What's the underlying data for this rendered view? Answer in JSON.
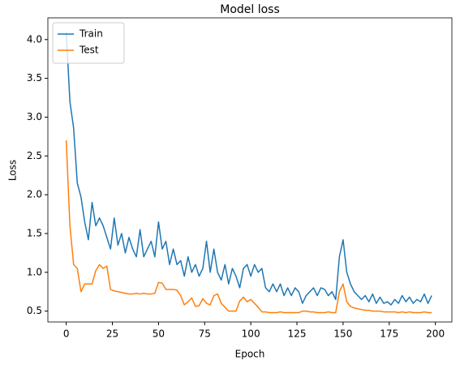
{
  "chart_data": {
    "type": "line",
    "title": "Model loss",
    "xlabel": "Epoch",
    "ylabel": "Loss",
    "x": [
      0,
      2,
      4,
      6,
      8,
      10,
      12,
      14,
      16,
      18,
      20,
      22,
      24,
      26,
      28,
      30,
      32,
      34,
      36,
      38,
      40,
      42,
      44,
      46,
      48,
      50,
      52,
      54,
      56,
      58,
      60,
      62,
      64,
      66,
      68,
      70,
      72,
      74,
      76,
      78,
      80,
      82,
      84,
      86,
      88,
      90,
      92,
      94,
      96,
      98,
      100,
      102,
      104,
      106,
      108,
      110,
      112,
      114,
      116,
      118,
      120,
      122,
      124,
      126,
      128,
      130,
      132,
      134,
      136,
      138,
      140,
      142,
      144,
      146,
      148,
      150,
      152,
      154,
      156,
      158,
      160,
      162,
      164,
      166,
      168,
      170,
      172,
      174,
      176,
      178,
      180,
      182,
      184,
      186,
      188,
      190,
      192,
      194,
      196,
      198
    ],
    "series": [
      {
        "name": "Train",
        "color": "#1f77b4",
        "values": [
          4.1,
          3.2,
          2.86,
          2.15,
          1.97,
          1.65,
          1.42,
          1.9,
          1.6,
          1.7,
          1.6,
          1.45,
          1.3,
          1.7,
          1.35,
          1.5,
          1.25,
          1.45,
          1.3,
          1.2,
          1.55,
          1.2,
          1.3,
          1.4,
          1.2,
          1.65,
          1.3,
          1.4,
          1.1,
          1.3,
          1.1,
          1.15,
          0.95,
          1.2,
          1.0,
          1.1,
          0.95,
          1.05,
          1.4,
          1.0,
          1.3,
          1.0,
          0.9,
          1.1,
          0.85,
          1.05,
          0.95,
          0.8,
          1.05,
          1.1,
          0.95,
          1.1,
          1.0,
          1.05,
          0.8,
          0.75,
          0.85,
          0.75,
          0.85,
          0.7,
          0.8,
          0.7,
          0.8,
          0.75,
          0.6,
          0.7,
          0.75,
          0.8,
          0.7,
          0.8,
          0.78,
          0.7,
          0.75,
          0.65,
          1.2,
          1.42,
          1.0,
          0.85,
          0.75,
          0.7,
          0.65,
          0.7,
          0.62,
          0.72,
          0.6,
          0.68,
          0.6,
          0.62,
          0.58,
          0.65,
          0.6,
          0.7,
          0.62,
          0.68,
          0.6,
          0.65,
          0.62,
          0.72,
          0.6,
          0.7
        ]
      },
      {
        "name": "Test",
        "color": "#ff7f0e",
        "values": [
          2.7,
          1.6,
          1.1,
          1.05,
          0.75,
          0.85,
          0.85,
          0.85,
          1.02,
          1.1,
          1.05,
          1.08,
          0.78,
          0.76,
          0.75,
          0.74,
          0.73,
          0.72,
          0.72,
          0.73,
          0.72,
          0.73,
          0.72,
          0.72,
          0.73,
          0.87,
          0.86,
          0.78,
          0.78,
          0.78,
          0.77,
          0.7,
          0.58,
          0.62,
          0.67,
          0.56,
          0.57,
          0.66,
          0.6,
          0.58,
          0.7,
          0.72,
          0.6,
          0.55,
          0.5,
          0.5,
          0.5,
          0.63,
          0.68,
          0.62,
          0.65,
          0.6,
          0.55,
          0.49,
          0.49,
          0.48,
          0.48,
          0.48,
          0.49,
          0.48,
          0.48,
          0.48,
          0.48,
          0.48,
          0.5,
          0.5,
          0.49,
          0.49,
          0.48,
          0.48,
          0.48,
          0.49,
          0.48,
          0.48,
          0.75,
          0.85,
          0.62,
          0.56,
          0.54,
          0.53,
          0.52,
          0.51,
          0.51,
          0.5,
          0.5,
          0.5,
          0.49,
          0.49,
          0.49,
          0.49,
          0.48,
          0.49,
          0.48,
          0.49,
          0.48,
          0.48,
          0.48,
          0.49,
          0.48,
          0.48
        ]
      }
    ],
    "xlim": [
      -9.95,
      208.95
    ],
    "xticks": [
      0,
      25,
      50,
      75,
      100,
      125,
      150,
      175,
      200
    ],
    "ylim": [
      0.36,
      4.28
    ],
    "yticks": [
      0.5,
      {
        "value": 1,
        "label": "1.0"
      },
      1.5,
      {
        "value": 2,
        "label": "2.0"
      },
      2.5,
      {
        "value": 3,
        "label": "3.0"
      },
      3.5,
      {
        "value": 4,
        "label": "4.0"
      }
    ],
    "legend": "upper left",
    "grid": false
  }
}
